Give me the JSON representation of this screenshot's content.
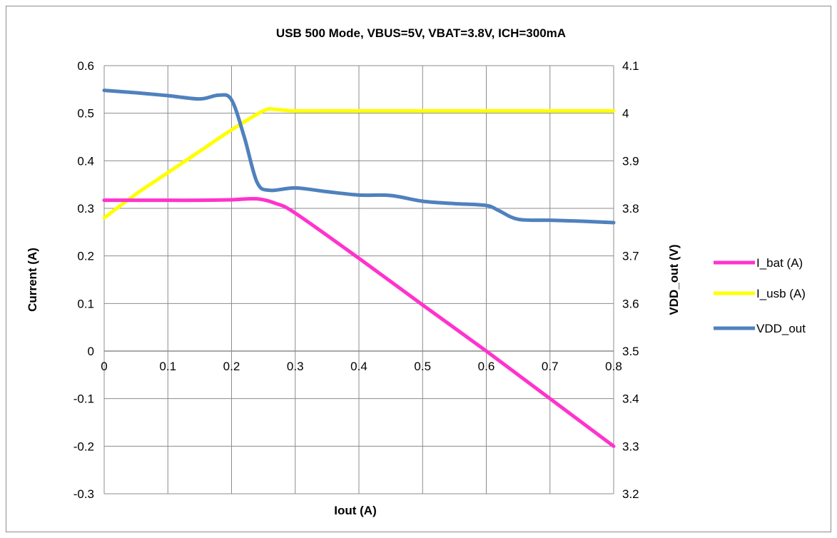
{
  "chart_data": {
    "type": "line",
    "title": "USB 500 Mode, VBUS=5V, VBAT=3.8V, ICH=300mA",
    "xlabel": "Iout (A)",
    "ylabel": "Current (A)",
    "y2label": "VDD_out (V)",
    "xlim": [
      0,
      0.8
    ],
    "ylim": [
      -0.3,
      0.6
    ],
    "y2lim": [
      3.2,
      4.1
    ],
    "x_ticks": [
      "0",
      "0.1",
      "0.2",
      "0.3",
      "0.4",
      "0.5",
      "0.6",
      "0.7",
      "0.8"
    ],
    "y_ticks": [
      "-0.3",
      "-0.2",
      "-0.1",
      "0",
      "0.1",
      "0.2",
      "0.3",
      "0.4",
      "0.5",
      "0.6"
    ],
    "y2_ticks": [
      "3.2",
      "3.3",
      "3.4",
      "3.5",
      "3.6",
      "3.7",
      "3.8",
      "3.9",
      "4",
      "4.1"
    ],
    "grid": true,
    "legend_position": "right",
    "series": [
      {
        "name": "I_bat (A)",
        "axis": "left",
        "color": "#ff33cc",
        "x": [
          0,
          0.05,
          0.1,
          0.15,
          0.2,
          0.24,
          0.27,
          0.3,
          0.4,
          0.5,
          0.6,
          0.7,
          0.8
        ],
        "y": [
          0.317,
          0.317,
          0.317,
          0.317,
          0.318,
          0.32,
          0.31,
          0.29,
          0.195,
          0.097,
          0.0,
          -0.1,
          -0.2
        ]
      },
      {
        "name": "I_usb (A)",
        "axis": "left",
        "color": "#ffff00",
        "x": [
          0,
          0.05,
          0.1,
          0.15,
          0.2,
          0.25,
          0.27,
          0.3,
          0.4,
          0.5,
          0.6,
          0.7,
          0.8
        ],
        "y": [
          0.28,
          0.33,
          0.375,
          0.42,
          0.465,
          0.505,
          0.508,
          0.505,
          0.505,
          0.505,
          0.505,
          0.505,
          0.505
        ]
      },
      {
        "name": "VDD_out",
        "axis": "right",
        "color": "#4f81bd",
        "x": [
          0,
          0.05,
          0.1,
          0.15,
          0.18,
          0.2,
          0.22,
          0.24,
          0.26,
          0.3,
          0.35,
          0.4,
          0.45,
          0.5,
          0.55,
          0.6,
          0.62,
          0.65,
          0.7,
          0.75,
          0.8
        ],
        "y": [
          4.048,
          4.043,
          4.037,
          4.03,
          4.038,
          4.028,
          3.95,
          3.855,
          3.838,
          3.843,
          3.835,
          3.828,
          3.827,
          3.815,
          3.81,
          3.806,
          3.795,
          3.777,
          3.775,
          3.773,
          3.77
        ]
      }
    ]
  }
}
